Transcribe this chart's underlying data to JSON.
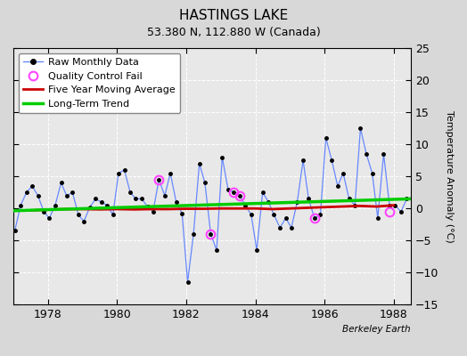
{
  "title": "HASTINGS LAKE",
  "subtitle": "53.380 N, 112.880 W (Canada)",
  "ylabel": "Temperature Anomaly (°C)",
  "watermark": "Berkeley Earth",
  "xlim": [
    1977.0,
    1988.5
  ],
  "ylim": [
    -15,
    25
  ],
  "yticks": [
    -15,
    -10,
    -5,
    0,
    5,
    10,
    15,
    20,
    25
  ],
  "xticks": [
    1978,
    1980,
    1982,
    1984,
    1986,
    1988
  ],
  "bg_color": "#d8d8d8",
  "plot_bg_color": "#e8e8e8",
  "raw_x": [
    1977.04,
    1977.21,
    1977.38,
    1977.54,
    1977.71,
    1977.88,
    1978.04,
    1978.21,
    1978.38,
    1978.54,
    1978.71,
    1978.88,
    1979.04,
    1979.21,
    1979.38,
    1979.54,
    1979.71,
    1979.88,
    1980.04,
    1980.21,
    1980.38,
    1980.54,
    1980.71,
    1980.88,
    1981.04,
    1981.21,
    1981.38,
    1981.54,
    1981.71,
    1981.88,
    1982.04,
    1982.21,
    1982.38,
    1982.54,
    1982.71,
    1982.88,
    1983.04,
    1983.21,
    1983.38,
    1983.54,
    1983.71,
    1983.88,
    1984.04,
    1984.21,
    1984.38,
    1984.54,
    1984.71,
    1984.88,
    1985.04,
    1985.21,
    1985.38,
    1985.54,
    1985.71,
    1985.88,
    1986.04,
    1986.21,
    1986.38,
    1986.54,
    1986.71,
    1986.88,
    1987.04,
    1987.21,
    1987.38,
    1987.54,
    1987.71,
    1987.88,
    1988.04,
    1988.21,
    1988.38
  ],
  "raw_y": [
    -3.5,
    0.5,
    2.5,
    3.5,
    2.0,
    -0.5,
    -1.5,
    0.5,
    4.0,
    2.0,
    2.5,
    -1.0,
    -2.0,
    0.2,
    1.5,
    1.0,
    0.5,
    -1.0,
    5.5,
    6.0,
    2.5,
    1.5,
    1.5,
    0.3,
    -0.5,
    4.5,
    2.0,
    5.5,
    1.0,
    -0.8,
    -11.5,
    -4.0,
    7.0,
    4.0,
    -4.0,
    -6.5,
    8.0,
    3.0,
    2.5,
    2.0,
    0.5,
    -1.0,
    -6.5,
    2.5,
    1.0,
    -1.0,
    -3.0,
    -1.5,
    -3.0,
    1.0,
    7.5,
    1.5,
    -1.5,
    -1.0,
    11.0,
    7.5,
    3.5,
    5.5,
    1.5,
    0.5,
    12.5,
    8.5,
    5.5,
    -1.5,
    8.5,
    0.5,
    0.5,
    -0.5,
    1.5
  ],
  "qc_fail_x": [
    1981.21,
    1982.71,
    1983.38,
    1983.54,
    1985.71,
    1987.88
  ],
  "qc_fail_y": [
    4.5,
    -4.0,
    2.5,
    2.0,
    -1.5,
    -0.5
  ],
  "moving_avg_x": [
    1977.5,
    1978.0,
    1978.5,
    1979.0,
    1979.5,
    1980.0,
    1980.5,
    1981.0,
    1981.5,
    1982.0,
    1982.5,
    1983.0,
    1983.5,
    1984.0,
    1984.5,
    1985.0,
    1985.5,
    1986.0,
    1986.5,
    1987.0,
    1987.5,
    1988.0
  ],
  "moving_avg_y": [
    -0.3,
    -0.2,
    -0.1,
    -0.1,
    -0.15,
    -0.1,
    -0.15,
    -0.1,
    -0.1,
    -0.05,
    -0.05,
    0.0,
    0.0,
    0.0,
    -0.1,
    0.0,
    0.1,
    0.2,
    0.3,
    0.4,
    0.3,
    0.5
  ],
  "trend_x": [
    1977.0,
    1988.5
  ],
  "trend_y": [
    -0.35,
    1.5
  ],
  "raw_line_color": "#6688ff",
  "raw_marker_color": "#000000",
  "moving_avg_color": "#cc0000",
  "trend_color": "#00cc00",
  "qc_color": "#ff44ff",
  "legend_fontsize": 8,
  "title_fontsize": 11,
  "subtitle_fontsize": 9
}
